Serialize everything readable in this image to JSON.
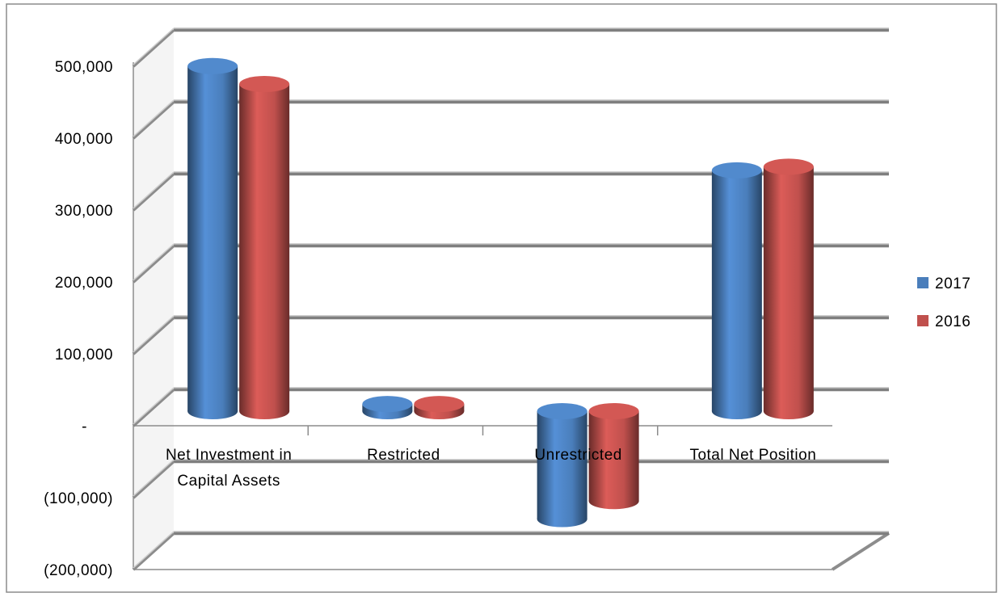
{
  "chart_data": {
    "type": "bar",
    "style": "3d-cylinder",
    "categories": [
      [
        "Net Investment in",
        "Capital Assets"
      ],
      [
        "Restricted"
      ],
      [
        "Unrestricted"
      ],
      [
        "Total Net Position"
      ]
    ],
    "series": [
      {
        "name": "2017",
        "color": "#4a7ebb",
        "values": [
          480000,
          10000,
          -150000,
          335000
        ]
      },
      {
        "name": "2016",
        "color": "#c0504d",
        "values": [
          455000,
          10000,
          -125000,
          340000
        ]
      }
    ],
    "ylim": [
      -200000,
      500000
    ],
    "yticks": [
      {
        "value": 500000,
        "label": "500,000"
      },
      {
        "value": 400000,
        "label": "400,000"
      },
      {
        "value": 300000,
        "label": "300,000"
      },
      {
        "value": 200000,
        "label": "200,000"
      },
      {
        "value": 100000,
        "label": "100,000"
      },
      {
        "value": 0,
        "label": "-"
      },
      {
        "value": -100000,
        "label": "(100,000)"
      },
      {
        "value": -200000,
        "label": "(200,000)"
      }
    ],
    "grid": true,
    "legend_position": "right",
    "title": "",
    "xlabel": "",
    "ylabel": ""
  }
}
